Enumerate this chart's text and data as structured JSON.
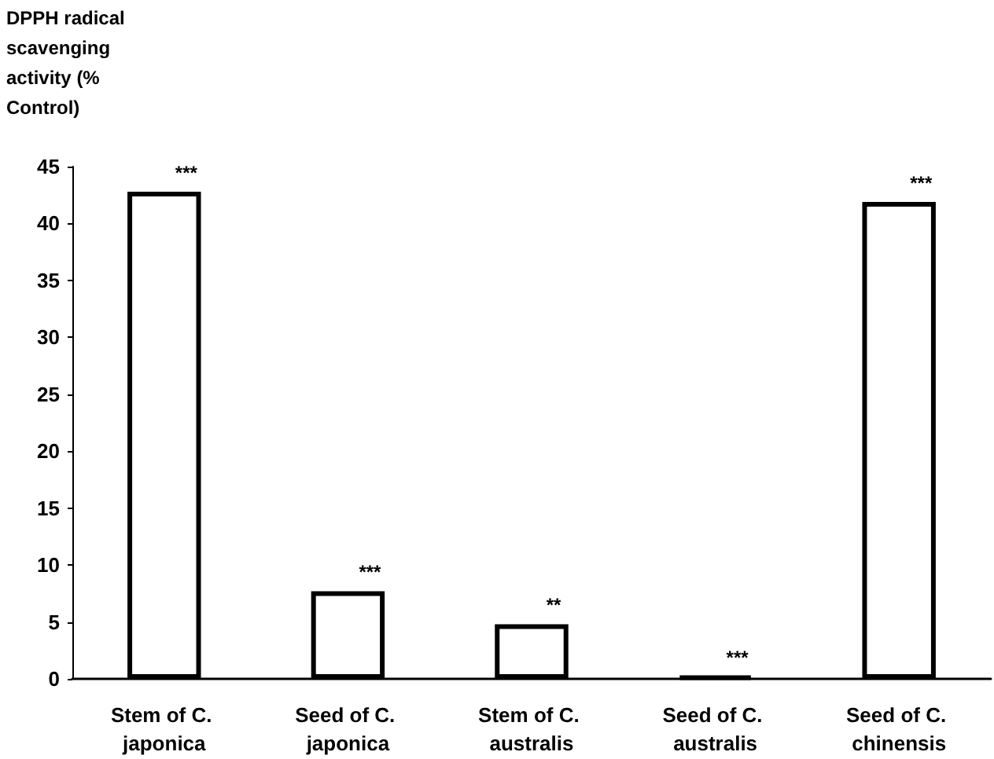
{
  "chart_data": {
    "type": "bar",
    "ylabel": "DPPH radical scavenging activity (% Control)",
    "categories": [
      "Stem of C. japonica",
      "Seed of C. japonica",
      "Stem of C. australis",
      "Seed of C. australis",
      "Seed of C. chinensis"
    ],
    "values": [
      42.8,
      7.7,
      4.8,
      0.2,
      41.9
    ],
    "colors": [
      "#ffffff",
      "#ffffff",
      "#ffffff",
      "#000000",
      "#ffffff"
    ],
    "ylim": [
      0,
      45
    ],
    "yticks": [
      0,
      5,
      10,
      15,
      20,
      25,
      30,
      35,
      40,
      45
    ],
    "grid": false,
    "annotations": [
      {
        "text": "***",
        "x": "Stem of C. japonica",
        "y": 42.8
      },
      {
        "text": "***",
        "x": "Seed of C. japonica",
        "y": 7.7
      },
      {
        "text": "**",
        "x": "Stem of C. australis",
        "y": 4.8
      },
      {
        "text": "***",
        "x": "Seed of C. australis",
        "y": 0.2
      },
      {
        "text": "***",
        "x": "Seed of C. chinensis",
        "y": 41.9
      }
    ]
  }
}
